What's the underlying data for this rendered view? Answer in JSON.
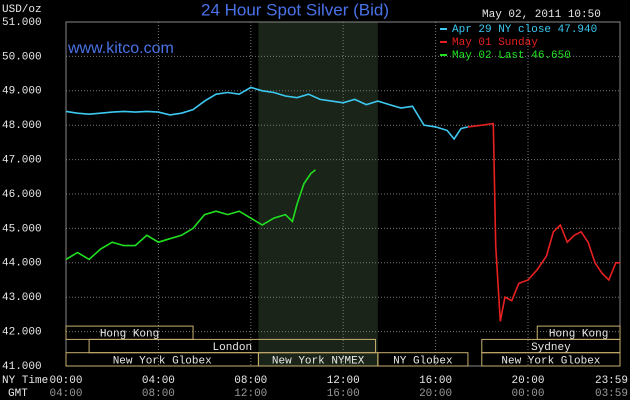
{
  "chart_data": {
    "type": "line",
    "title": "24 Hour Spot Silver (Bid)",
    "timestamp": "May 02, 2011 10:50",
    "y_label": "USD/oz",
    "watermark": "www.kitco.com",
    "x_row_labels": [
      "NY Time",
      "GMT"
    ],
    "xlim": [
      0,
      23.983
    ],
    "xticks": [
      {
        "value": 0,
        "label": "00:00"
      },
      {
        "value": 4,
        "label": "04:00"
      },
      {
        "value": 8,
        "label": "08:00"
      },
      {
        "value": 12,
        "label": "12:00"
      },
      {
        "value": 16,
        "label": "16:00"
      },
      {
        "value": 20,
        "label": "20:00"
      },
      {
        "value": 23.983,
        "label": "23:59"
      }
    ],
    "xticks_gmt": [
      "04:00",
      "08:00",
      "12:00",
      "16:00",
      "20:00",
      "00:00",
      "03:59"
    ],
    "ylim": [
      41,
      51
    ],
    "yticks": [
      {
        "value": 41,
        "label": "41.000"
      },
      {
        "value": 42,
        "label": "42.000"
      },
      {
        "value": 43,
        "label": "43.000"
      },
      {
        "value": 44,
        "label": "44.000"
      },
      {
        "value": 45,
        "label": "45.000"
      },
      {
        "value": 46,
        "label": "46.000"
      },
      {
        "value": 47,
        "label": "47.000"
      },
      {
        "value": 48,
        "label": "48.000"
      },
      {
        "value": 49,
        "label": "49.000"
      },
      {
        "value": 50,
        "label": "50.000"
      },
      {
        "value": 51,
        "label": "51.000"
      }
    ],
    "grid": true,
    "shade": [
      8.33,
      13.5
    ],
    "series": [
      {
        "name": "Apr 29 NY close 47.940",
        "color": "#3cc8f0",
        "x": [
          0,
          0.5,
          1,
          1.5,
          2,
          2.5,
          3,
          3.5,
          4,
          4.5,
          5,
          5.5,
          6,
          6.5,
          7,
          7.5,
          8,
          8.5,
          9,
          9.5,
          10,
          10.5,
          11,
          11.5,
          12,
          12.5,
          13,
          13.5,
          14,
          14.5,
          15,
          15.5,
          16,
          16.5,
          16.8,
          17.1,
          17.4
        ],
        "values": [
          48.4,
          48.35,
          48.32,
          48.35,
          48.38,
          48.4,
          48.38,
          48.4,
          48.38,
          48.3,
          48.35,
          48.45,
          48.7,
          48.9,
          48.95,
          48.9,
          49.1,
          49.0,
          48.95,
          48.85,
          48.8,
          48.9,
          48.75,
          48.7,
          48.65,
          48.75,
          48.6,
          48.7,
          48.6,
          48.5,
          48.55,
          48.0,
          47.95,
          47.85,
          47.6,
          47.9,
          47.95
        ]
      },
      {
        "name": "May 01 Sunday",
        "color": "#e82020",
        "x": [
          17.4,
          18,
          18.5,
          18.6,
          18.8,
          19,
          19.3,
          19.6,
          20,
          20.4,
          20.8,
          21.1,
          21.4,
          21.7,
          22,
          22.3,
          22.6,
          22.9,
          23.2,
          23.5,
          23.8,
          23.983
        ],
        "values": [
          47.95,
          48.0,
          48.05,
          44.5,
          42.3,
          43.0,
          42.9,
          43.4,
          43.5,
          43.8,
          44.2,
          44.9,
          45.1,
          44.6,
          44.8,
          44.9,
          44.6,
          44.0,
          43.7,
          43.5,
          44.0,
          44.0
        ]
      },
      {
        "name": "May 02 Last 46.650",
        "color": "#20e020",
        "x": [
          0,
          0.5,
          1,
          1.5,
          2,
          2.5,
          3,
          3.5,
          4,
          4.5,
          5,
          5.5,
          6,
          6.5,
          7,
          7.5,
          8,
          8.5,
          9,
          9.5,
          9.8,
          10,
          10.3,
          10.6,
          10.8
        ],
        "values": [
          44.1,
          44.3,
          44.1,
          44.4,
          44.6,
          44.5,
          44.5,
          44.8,
          44.6,
          44.7,
          44.8,
          45.0,
          45.4,
          45.5,
          45.4,
          45.5,
          45.3,
          45.1,
          45.3,
          45.4,
          45.2,
          45.7,
          46.3,
          46.6,
          46.7
        ]
      }
    ],
    "sessions": [
      [
        {
          "label": "Hong Kong",
          "start": 0,
          "end": 5.5
        },
        {
          "label": "Hong Kong",
          "start": 20.4,
          "end": 23.983
        }
      ],
      [
        {
          "label": "London",
          "start": 1,
          "end": 13.4
        },
        {
          "label": "Sydney",
          "start": 18,
          "end": 23.983
        }
      ],
      [
        {
          "label": "New York Globex",
          "start": 0,
          "end": 8.33
        },
        {
          "label": "New York NYMEX",
          "start": 8.33,
          "end": 13.5
        },
        {
          "label": "NY Globex",
          "start": 13.5,
          "end": 17.4
        },
        {
          "label": "New York Globex",
          "start": 18,
          "end": 23.983
        }
      ]
    ]
  }
}
